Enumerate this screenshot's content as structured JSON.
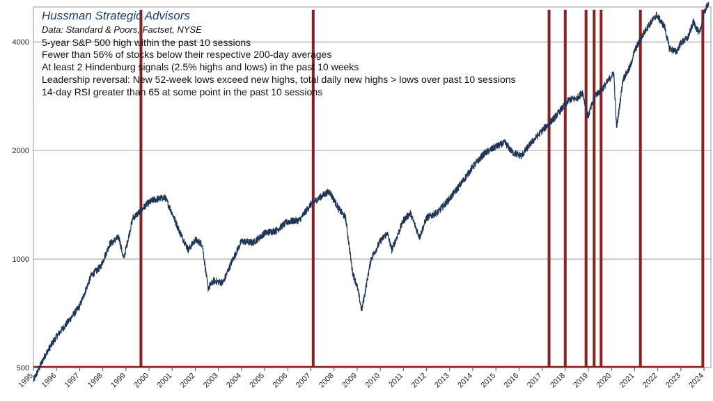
{
  "chart_data": {
    "type": "line",
    "title": "Hussman Strategic Advisors",
    "subtitle": "Data: Standard & Poors, Factset, NYSE",
    "annotations": [
      "5-year S&P 500 high within the past 10 sessions",
      "Fewer than 56% of stocks below their respective 200-day averages",
      "At least 2 Hindenburg signals (2.5% highs and lows) in the past 10 weeks",
      "Leadership reversal: New 52-week lows exceed new highs, total daily new highs > lows over past 10 sessions",
      "14-day RSI greater than 65 at some point in the past 10 sessions"
    ],
    "y_scale": "log",
    "ylim": [
      500,
      5000
    ],
    "y_ticks": [
      500,
      1000,
      2000,
      4000
    ],
    "y_tick_labels": [
      "500",
      "1000",
      "2000",
      "4000"
    ],
    "xlim": [
      1995,
      2024.3
    ],
    "x_ticks": [
      1995,
      1996,
      1997,
      1998,
      1999,
      2000,
      2001,
      2002,
      2003,
      2004,
      2005,
      2006,
      2007,
      2008,
      2009,
      2010,
      2011,
      2012,
      2013,
      2014,
      2015,
      2016,
      2017,
      2018,
      2019,
      2020,
      2021,
      2022,
      2023,
      2024
    ],
    "x_tick_labels": [
      "1995",
      "1996",
      "1997",
      "1998",
      "1999",
      "2000",
      "2001",
      "2002",
      "2003",
      "2004",
      "2005",
      "2006",
      "2007",
      "2008",
      "2009",
      "2010",
      "2011",
      "2012",
      "2013",
      "2014",
      "2015",
      "2016",
      "2017",
      "2018",
      "2019",
      "2020",
      "2021",
      "2022",
      "2023",
      "2024"
    ],
    "grid": "horizontal",
    "series": [
      {
        "color": "#1f3557",
        "x": [
          1995.0,
          1995.5,
          1996.0,
          1996.5,
          1997.0,
          1997.5,
          1997.9,
          1998.3,
          1998.7,
          1998.9,
          1999.3,
          1999.6,
          1999.9,
          2000.2,
          2000.7,
          2001.0,
          2001.3,
          2001.7,
          2002.0,
          2002.3,
          2002.55,
          2002.8,
          2003.2,
          2003.6,
          2004.0,
          2004.5,
          2005.0,
          2005.5,
          2006.0,
          2006.5,
          2007.0,
          2007.5,
          2007.8,
          2008.2,
          2008.5,
          2008.8,
          2009.0,
          2009.2,
          2009.6,
          2010.0,
          2010.3,
          2010.5,
          2011.0,
          2011.3,
          2011.7,
          2012.0,
          2012.5,
          2013.0,
          2013.5,
          2014.0,
          2014.5,
          2015.0,
          2015.4,
          2015.7,
          2016.1,
          2016.5,
          2017.0,
          2017.5,
          2018.0,
          2018.15,
          2018.5,
          2018.75,
          2018.98,
          2019.3,
          2019.6,
          2020.1,
          2020.22,
          2020.5,
          2020.8,
          2021.0,
          2021.5,
          2021.95,
          2022.3,
          2022.5,
          2022.8,
          2023.0,
          2023.3,
          2023.55,
          2023.8,
          2024.0,
          2024.2
        ],
        "y": [
          460,
          540,
          610,
          670,
          740,
          900,
          950,
          1100,
          1150,
          1000,
          1300,
          1350,
          1420,
          1460,
          1480,
          1340,
          1200,
          1060,
          1130,
          1100,
          830,
          870,
          860,
          990,
          1120,
          1110,
          1180,
          1200,
          1270,
          1280,
          1420,
          1500,
          1540,
          1380,
          1300,
          920,
          840,
          720,
          1000,
          1120,
          1180,
          1060,
          1280,
          1340,
          1150,
          1300,
          1350,
          1470,
          1620,
          1800,
          1960,
          2050,
          2100,
          1980,
          1930,
          2090,
          2270,
          2450,
          2680,
          2760,
          2790,
          2900,
          2480,
          2850,
          2960,
          3280,
          2300,
          3150,
          3400,
          3780,
          4350,
          4750,
          4400,
          3850,
          3750,
          3970,
          4100,
          4550,
          4200,
          4800,
          5150
        ]
      }
    ],
    "signal_lines": {
      "color": "#8b2020",
      "x": [
        1999.65,
        2007.1,
        2017.3,
        2018.0,
        2018.9,
        2019.25,
        2019.55,
        2021.25,
        2023.95
      ]
    }
  }
}
